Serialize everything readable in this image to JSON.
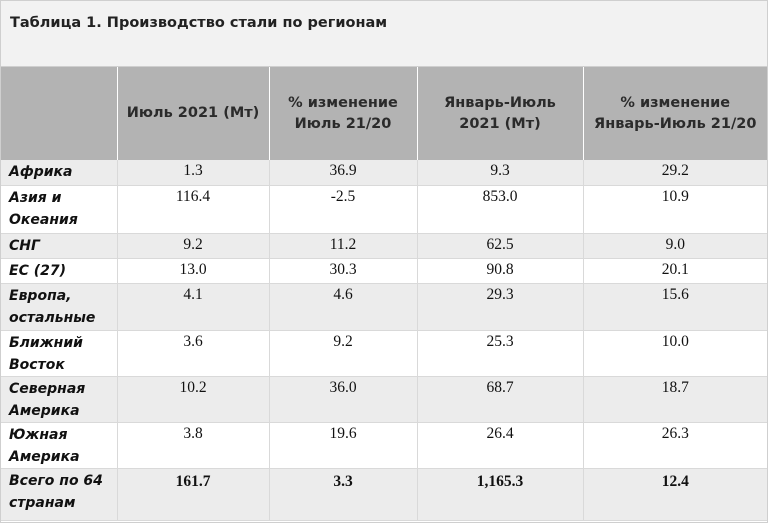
{
  "caption": "Таблица 1. Производство стали по регионам",
  "headers": [
    "",
    "Июль 2021 (Мт)",
    "% изменение Июль 21/20",
    "Январь-Июль 2021 (Мт)",
    "% изменение Январь-Июль 21/20"
  ],
  "rows": [
    {
      "region": "Африка",
      "jul": "1.3",
      "jul_chg": "36.9",
      "ytd": "9.3",
      "ytd_chg": "29.2"
    },
    {
      "region": "Азия и Океания",
      "jul": "116.4",
      "jul_chg": "-2.5",
      "ytd": "853.0",
      "ytd_chg": "10.9"
    },
    {
      "region": "СНГ",
      "jul": "9.2",
      "jul_chg": "11.2",
      "ytd": "62.5",
      "ytd_chg": "9.0"
    },
    {
      "region": "ЕС (27)",
      "jul": "13.0",
      "jul_chg": "30.3",
      "ytd": "90.8",
      "ytd_chg": "20.1"
    },
    {
      "region": "Европа, остальные",
      "jul": "4.1",
      "jul_chg": "4.6",
      "ytd": "29.3",
      "ytd_chg": "15.6"
    },
    {
      "region": "Ближний Восток",
      "jul": "3.6",
      "jul_chg": "9.2",
      "ytd": "25.3",
      "ytd_chg": "10.0"
    },
    {
      "region": "Северная Америка",
      "jul": "10.2",
      "jul_chg": "36.0",
      "ytd": "68.7",
      "ytd_chg": "18.7"
    },
    {
      "region": "Южная Америка",
      "jul": "3.8",
      "jul_chg": "19.6",
      "ytd": "26.4",
      "ytd_chg": "26.3"
    }
  ],
  "total": {
    "region": "Всего по 64 странам",
    "jul": "161.7",
    "jul_chg": "3.3",
    "ytd": "1,165.3",
    "ytd_chg": "12.4"
  },
  "colors": {
    "header_bg": "#b3b3b3",
    "stripe": "#ececec",
    "caption_bg": "#f2f2f2"
  }
}
